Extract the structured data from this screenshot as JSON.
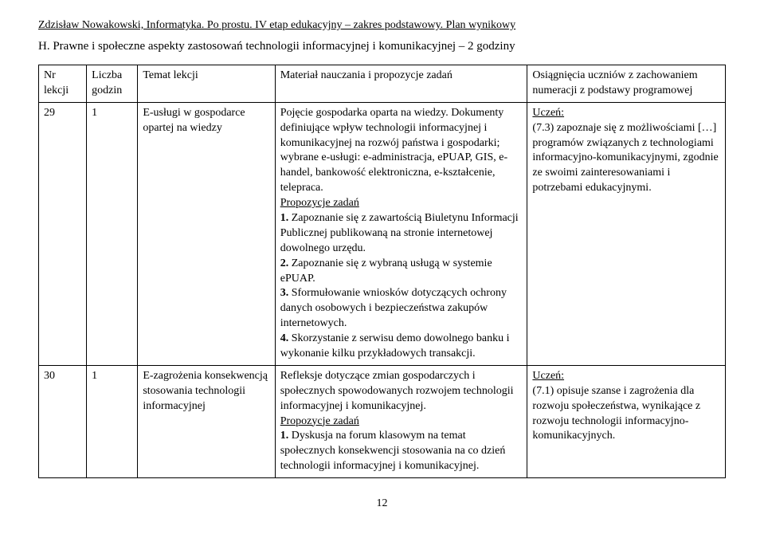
{
  "header": "Zdzisław Nowakowski, Informatyka. Po prostu. IV etap edukacyjny – zakres podstawowy. Plan wynikowy",
  "section_title": "H. Prawne i społeczne aspekty zastosowań technologii informacyjnej i komunikacyjnej – 2 godziny",
  "table": {
    "headers": {
      "nr": "Nr lekcji",
      "liczba": "Liczba godzin",
      "temat": "Temat lekcji",
      "material": "Materiał nauczania i propozycje zadań",
      "osiag": "Osiągnięcia uczniów z zachowaniem numeracji z podstawy programowej"
    },
    "rows": [
      {
        "nr": "29",
        "liczba": "1",
        "temat": "E-usługi w gospodarce opartej na wiedzy",
        "material": "Pojęcie gospodarka oparta na wiedzy. Dokumenty definiujące wpływ technologii informacyjnej i komunikacyjnej na rozwój państwa i gospodarki; wybrane e-usługi: e-administracja, ePUAP, GIS, e-handel, bankowość elektroniczna, e-kształcenie, telepraca.\nPropozycje zadań\n1. Zapoznanie się z zawartością Biuletynu Informacji Publicznej publikowaną na stronie internetowej dowolnego urzędu.\n2. Zapoznanie się z wybraną usługą w systemie ePUAP.\n3. Sformułowanie wniosków dotyczących ochrony danych osobowych i bezpieczeństwa zakupów internetowych.\n4. Skorzystanie z serwisu demo dowolnego banku i wykonanie kilku przykładowych transakcji.",
        "osiag_label": "Uczeń:",
        "osiag_body": "(7.3) zapoznaje się z możliwościami […] programów związanych z technologiami informacyjno-komunikacyjnymi, zgodnie ze swoimi zainteresowaniami i potrzebami edukacyjnymi."
      },
      {
        "nr": "30",
        "liczba": "1",
        "temat": "E-zagrożenia konsekwencją stosowania technologii informacyjnej",
        "material": "Refleksje dotyczące zmian gospodarczych i społecznych spowodowanych rozwojem technologii informacyjnej i komunikacyjnej.\nPropozycje zadań\n1. Dyskusja na forum klasowym na temat społecznych konsekwencji stosowania na co dzień technologii informacyjnej i komunikacyjnej.",
        "osiag_label": "Uczeń:",
        "osiag_body": "(7.1) opisuje szanse i zagrożenia dla rozwoju społeczeństwa, wynikające z rozwoju technologii informacyjno-komunikacyjnych."
      }
    ]
  },
  "page_number": "12"
}
